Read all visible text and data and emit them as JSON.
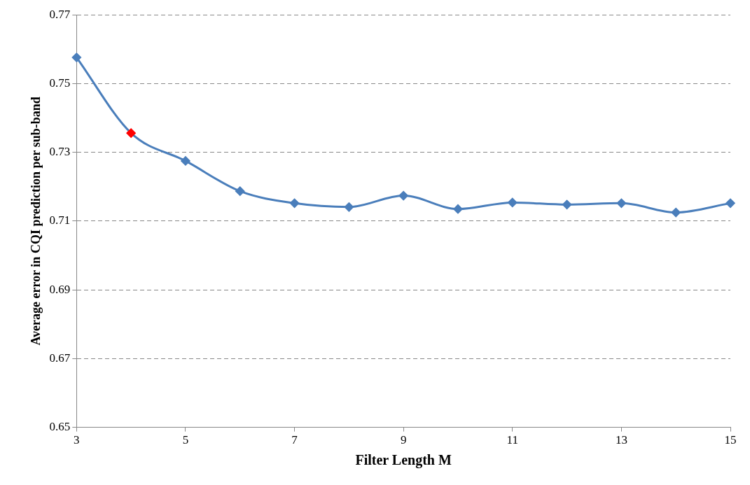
{
  "chart_data": {
    "type": "line",
    "xlabel": "Filter Length M",
    "ylabel": "Average error in CQI prediction per sub-band",
    "x": [
      3,
      4,
      5,
      6,
      7,
      8,
      9,
      10,
      11,
      12,
      13,
      14,
      15
    ],
    "series": [
      {
        "color": "#4a7ebb",
        "colors": [
          "#4a7ebb",
          "#ff0000",
          "#4a7ebb",
          "#4a7ebb",
          "#4a7ebb",
          "#4a7ebb",
          "#4a7ebb",
          "#4a7ebb",
          "#4a7ebb",
          "#4a7ebb",
          "#4a7ebb",
          "#4a7ebb",
          "#4a7ebb"
        ],
        "values": [
          0.7576,
          0.7356,
          0.7275,
          0.7187,
          0.7152,
          0.7141,
          0.7174,
          0.7135,
          0.7154,
          0.7148,
          0.7152,
          0.7125,
          0.7152
        ]
      }
    ],
    "xlim": [
      3,
      15
    ],
    "xticks": [
      3,
      5,
      7,
      9,
      11,
      13,
      15
    ],
    "ylim": [
      0.65,
      0.77
    ],
    "yticks": [
      0.65,
      0.67,
      0.69,
      0.71,
      0.73,
      0.75,
      0.77
    ],
    "grid": "y",
    "marker": "diamond",
    "line_style": "solid",
    "legend": false
  }
}
